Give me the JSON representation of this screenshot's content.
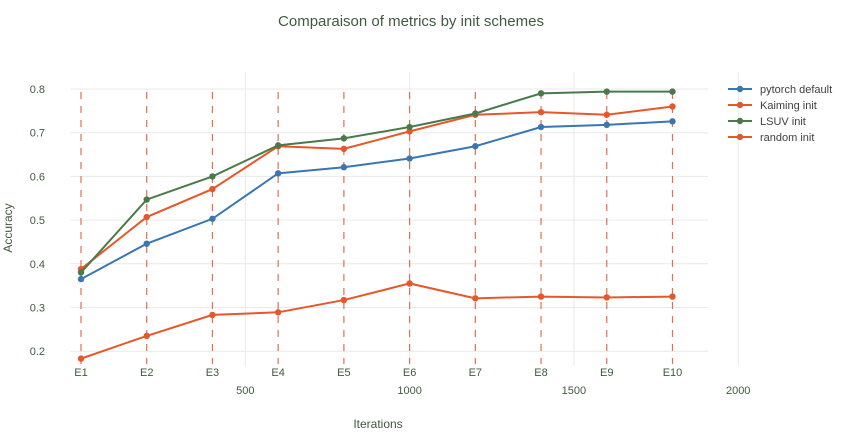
{
  "chart_data": {
    "type": "line",
    "title": "Comparaison of metrics by init schemes",
    "xlabel": "Iterations",
    "ylabel": "Accuracy",
    "xlim": [
      0,
      2080
    ],
    "ylim": [
      0.17,
      0.845
    ],
    "xticks": [
      500,
      1000,
      1500,
      2000
    ],
    "yticks": [
      0.2,
      0.3,
      0.4,
      0.5,
      0.6,
      0.7,
      0.8
    ],
    "x": [
      0,
      200,
      400,
      600,
      800,
      1000,
      1200,
      1400,
      1600,
      1800
    ],
    "epoch_labels": [
      "E1",
      "E2",
      "E3",
      "E4",
      "E5",
      "E6",
      "E7",
      "E8",
      "E9",
      "E10"
    ],
    "legend_position": "top-right",
    "series": [
      {
        "name": "pytorch default",
        "color": "#3a76b0",
        "values": [
          0.365,
          0.446,
          0.503,
          0.607,
          0.621,
          0.641,
          0.669,
          0.713,
          0.718,
          0.726
        ]
      },
      {
        "name": "Kaiming init",
        "color": "#e4582a",
        "values": [
          0.388,
          0.507,
          0.571,
          0.669,
          0.663,
          0.703,
          0.741,
          0.747,
          0.741,
          0.76
        ]
      },
      {
        "name": "LSUV init",
        "color": "#4a7a4a",
        "values": [
          0.38,
          0.547,
          0.6,
          0.671,
          0.687,
          0.713,
          0.744,
          0.79,
          0.794,
          0.794
        ]
      },
      {
        "name": "random init",
        "color": "#e4582a",
        "values": [
          0.183,
          0.235,
          0.283,
          0.289,
          0.317,
          0.355,
          0.321,
          0.325,
          0.323,
          0.325
        ]
      }
    ]
  }
}
